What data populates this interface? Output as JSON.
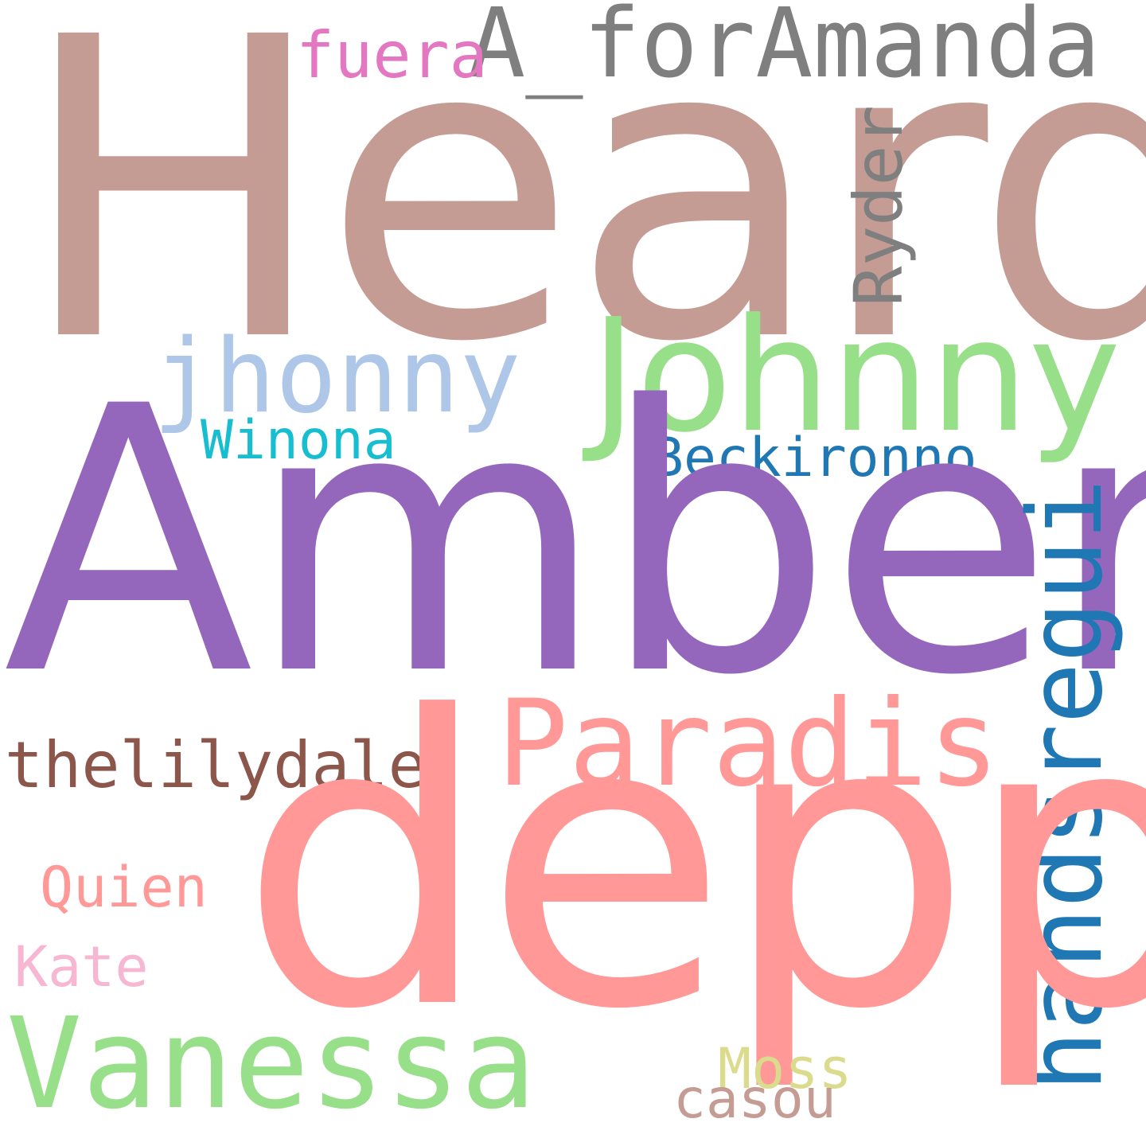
{
  "words": {
    "heard": {
      "text": "Heard",
      "color": "#c49c94"
    },
    "amber": {
      "text": "Amber",
      "color": "#9467bd"
    },
    "depp": {
      "text": "depp",
      "color": "#ff9896"
    },
    "johnny": {
      "text": "Johnny",
      "color": "#98df8a"
    },
    "vanessa": {
      "text": "Vanessa",
      "color": "#98df8a"
    },
    "jhonny": {
      "text": "jhonny",
      "color": "#aec7e8"
    },
    "a_foramanda": {
      "text": "A_forAmanda",
      "color": "#7f7f7f"
    },
    "paradis": {
      "text": "Paradis",
      "color": "#ff9896"
    },
    "handsregui": {
      "text": "handsregui",
      "color": "#1f77b4"
    },
    "beckironno": {
      "text": "Beckironno",
      "color": "#1f77b4"
    },
    "winona": {
      "text": "Winona",
      "color": "#17becf"
    },
    "ryder": {
      "text": "Ryder",
      "color": "#7f7f7f"
    },
    "fuera": {
      "text": "fuera",
      "color": "#e377c2"
    },
    "thelilydale": {
      "text": "thelilydale",
      "color": "#8c564b"
    },
    "quien": {
      "text": "Quien",
      "color": "#ff9896"
    },
    "kate": {
      "text": "Kate",
      "color": "#f7b6d2"
    },
    "moss": {
      "text": "Moss",
      "color": "#dbdb8d"
    },
    "casou": {
      "text": "casou",
      "color": "#c49c94"
    }
  }
}
